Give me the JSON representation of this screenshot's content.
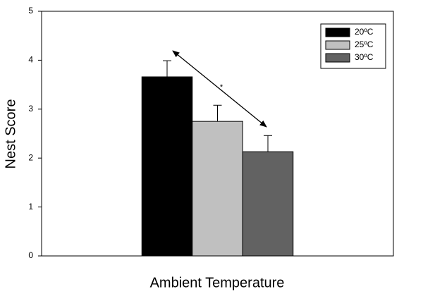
{
  "chart_data": {
    "type": "bar",
    "x_label": "Ambient Temperature",
    "y_label": "Nest Score",
    "categories": [
      null
    ],
    "series": [
      {
        "name": "20ºC",
        "color": "#000000",
        "values": [
          3.66
        ],
        "errors": [
          0.33
        ]
      },
      {
        "name": "25ºC",
        "color": "#c0c0c0",
        "values": [
          2.75
        ],
        "errors": [
          0.33
        ]
      },
      {
        "name": "30ºC",
        "color": "#626262",
        "values": [
          2.13
        ],
        "errors": [
          0.33
        ]
      }
    ],
    "annotation": "*",
    "ylim": [
      0,
      5
    ],
    "yticks": [
      0,
      1,
      2,
      3,
      4,
      5
    ],
    "legend": "upper right"
  }
}
